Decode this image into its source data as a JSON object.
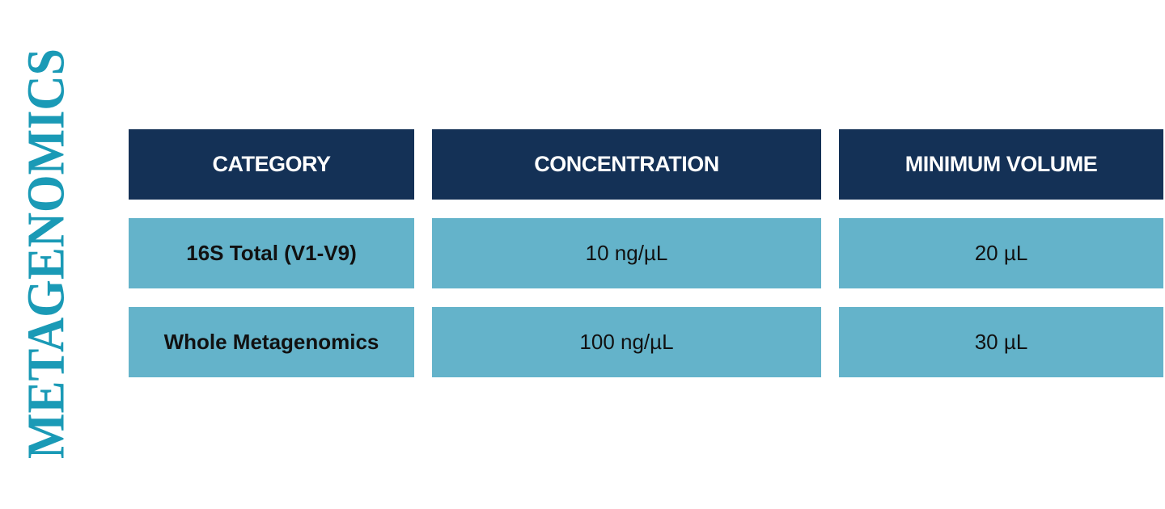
{
  "title": "METAGENOMICS",
  "table": {
    "header": [
      "CATEGORY",
      "CONCENTRATION",
      "MINIMUM VOLUME"
    ],
    "rows": [
      [
        "16S Total (V1-V9)",
        "10 ng/µL",
        "20 µL"
      ],
      [
        "Whole Metagenomics",
        "100 ng/µL",
        "30 µL"
      ]
    ]
  }
}
